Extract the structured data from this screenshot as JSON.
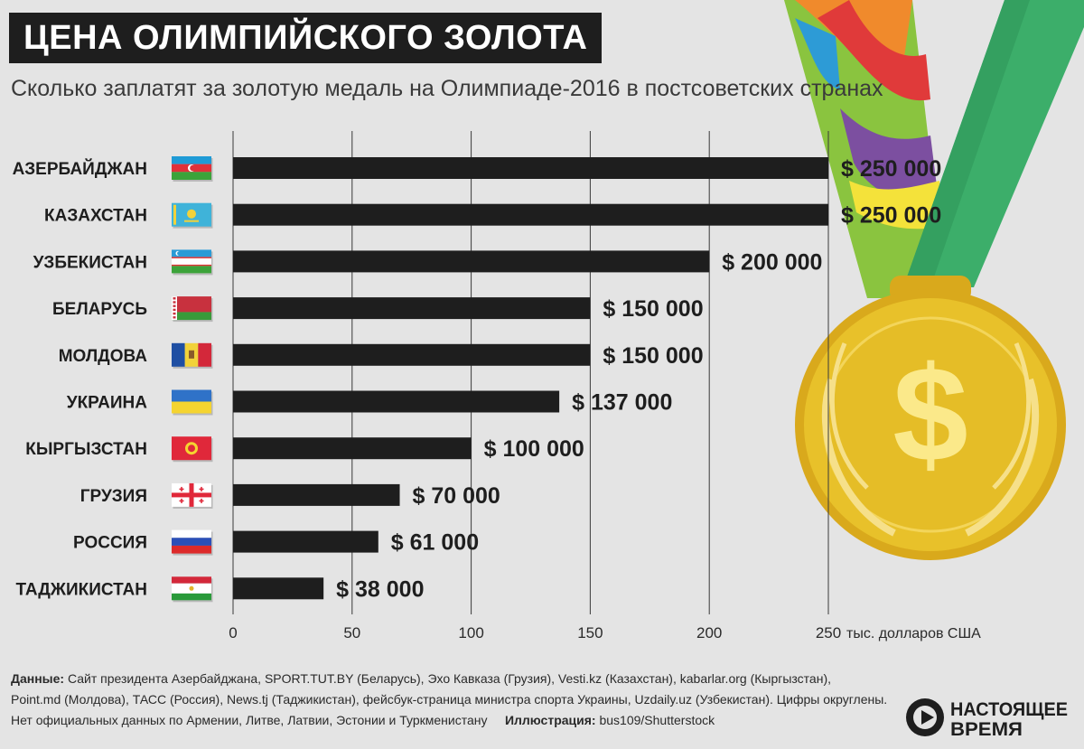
{
  "header": {
    "title": "ЦЕНА ОЛИМПИЙСКОГО ЗОЛОТА",
    "subtitle": "Сколько заплатят за золотую медаль на Олимпиаде-2016 в постсоветских  странах"
  },
  "chart_data": {
    "type": "bar",
    "orientation": "horizontal",
    "categories": [
      "АЗЕРБАЙДЖАН",
      "КАЗАХСТАН",
      "УЗБЕКИСТАН",
      "БЕЛАРУСЬ",
      "МОЛДОВА",
      "УКРАИНА",
      "КЫРГЫЗСТАН",
      "ГРУЗИЯ",
      "РОССИЯ",
      "ТАДЖИКИСТАН"
    ],
    "values": [
      250,
      250,
      200,
      150,
      150,
      137,
      100,
      70,
      61,
      38
    ],
    "value_labels": [
      "$ 250 000",
      "$ 250 000",
      "$ 200 000",
      "$ 150 000",
      "$ 150 000",
      "$ 137 000",
      "$ 100 000",
      "$ 70 000",
      "$ 61 000",
      "$ 38 000"
    ],
    "x_ticks": [
      0,
      50,
      100,
      150,
      200,
      250
    ],
    "x_unit_label": "тыс. долларов США",
    "xlim": [
      0,
      250
    ],
    "grid": true,
    "bar_color": "#1e1e1e"
  },
  "flags": [
    "azerbaijan-flag-icon",
    "kazakhstan-flag-icon",
    "uzbekistan-flag-icon",
    "belarus-flag-icon",
    "moldova-flag-icon",
    "ukraine-flag-icon",
    "kyrgyzstan-flag-icon",
    "georgia-flag-icon",
    "russia-flag-icon",
    "tajikistan-flag-icon"
  ],
  "footer": {
    "sources_label": "Данные:",
    "sources_line1": " Сайт президента Азербайджана, SPORT.TUT.BY (Беларусь), Эхо Кавказа (Грузия), Vesti.kz (Казахстан), kabarlar.org (Кыргызстан),",
    "sources_line2": "Point.md (Молдова), ТАСС (Россия), News.tj (Таджикистан), фейсбук-страница министра спорта Украины, Uzdaily.uz (Узбекистан). Цифры округлены.",
    "note": "Нет официальных данных по Армении, Литве, Латвии, Эстонии и Туркменистану",
    "illustration_label": "Иллюстрация:",
    "illustration_value": " bus109/Shutterstock"
  },
  "logo": {
    "line1": "НАСТОЯЩЕЕ",
    "line2": "ВРЕМЯ"
  },
  "colors": {
    "background": "#e4e4e4",
    "bar": "#1e1e1e",
    "medal_gold": "#e8c12a",
    "ribbon_green": "#3cae6a"
  }
}
